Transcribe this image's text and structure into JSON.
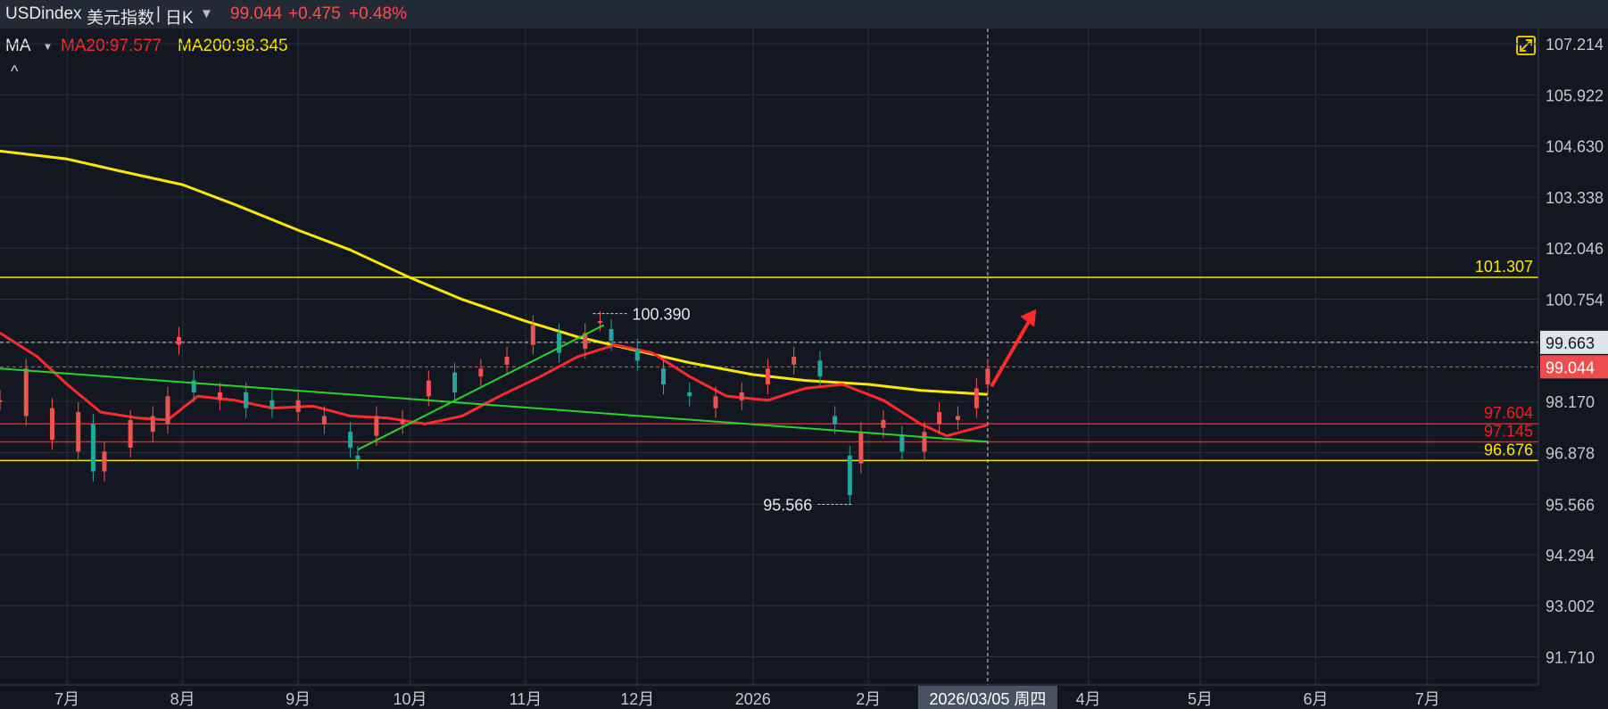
{
  "header": {
    "symbol": "USDindex",
    "name": "美元指数",
    "separator": "|",
    "period": "日K",
    "period_dropdown_icon": "triangle-down-icon",
    "price": "99.044",
    "change": "+0.475",
    "change_pct": "+0.48%"
  },
  "indicator": {
    "name": "MA",
    "dropdown_icon": "triangle-down-icon",
    "ma20_label": "MA20:97.577",
    "ma200_label": "MA200:98.345",
    "ma20_color": "#ff2a2a",
    "ma200_color": "#ffe600",
    "collapse_icon": "chevron-up-icon",
    "expand_icon": "fullscreen-icon"
  },
  "chart_data": {
    "type": "candlestick",
    "ylim": [
      91.0,
      107.6
    ],
    "y_ticks": [
      "107.214",
      "105.922",
      "104.630",
      "103.338",
      "102.046",
      "100.754",
      "99.663",
      "98.170",
      "96.878",
      "95.566",
      "94.294",
      "93.002",
      "91.710"
    ],
    "x_ticks": [
      "7月",
      "8月",
      "9月",
      "10月",
      "11月",
      "12月",
      "2026",
      "2月",
      "4月",
      "5月",
      "6月",
      "7月"
    ],
    "x_tick_dates": [
      "2025-07-01",
      "2025-08-01",
      "2025-09-01",
      "2025-10-01",
      "2025-11-01",
      "2025-12-01",
      "2026-01-01",
      "2026-02-01",
      "2026-04-01",
      "2026-05-01",
      "2026-06-01",
      "2026-07-01"
    ],
    "crosshair": {
      "date": "2026-03-05",
      "label": "2026/03/05 周四",
      "price": 99.663,
      "price_label": "99.663"
    },
    "last_price": {
      "value": 99.044,
      "label": "99.044",
      "color": "#ef4d4d"
    },
    "horizontal_levels": [
      {
        "value": 101.307,
        "label": "101.307",
        "color": "#ffe600"
      },
      {
        "value": 97.604,
        "label": "97.604",
        "color": "#ff1a1a"
      },
      {
        "value": 97.145,
        "label": "97.145",
        "color": "#ff1a1a"
      },
      {
        "value": 96.676,
        "label": "96.676",
        "color": "#ffe600"
      }
    ],
    "annotations": [
      {
        "date": "2025-11-21",
        "value": 100.39,
        "label": "100.390"
      },
      {
        "date": "2026-01-27",
        "value": 95.566,
        "label": "95.566"
      }
    ],
    "ma200": {
      "name": "MA200",
      "color": "#ffe600",
      "points": [
        [
          "2025-06-13",
          104.5
        ],
        [
          "2025-07-01",
          104.3
        ],
        [
          "2025-07-15",
          104.0
        ],
        [
          "2025-08-01",
          103.65
        ],
        [
          "2025-08-15",
          103.15
        ],
        [
          "2025-09-01",
          102.5
        ],
        [
          "2025-09-15",
          102.0
        ],
        [
          "2025-10-01",
          101.3
        ],
        [
          "2025-10-15",
          100.75
        ],
        [
          "2025-11-01",
          100.2
        ],
        [
          "2025-11-15",
          99.8
        ],
        [
          "2025-12-01",
          99.45
        ],
        [
          "2025-12-15",
          99.15
        ],
        [
          "2026-01-01",
          98.85
        ],
        [
          "2026-01-15",
          98.7
        ],
        [
          "2026-02-01",
          98.6
        ],
        [
          "2026-02-15",
          98.45
        ],
        [
          "2026-03-05",
          98.345
        ]
      ]
    },
    "ma20": {
      "name": "MA20",
      "color": "#ff2a2a",
      "points": [
        [
          "2025-06-13",
          99.9
        ],
        [
          "2025-06-23",
          99.3
        ],
        [
          "2025-07-01",
          98.6
        ],
        [
          "2025-07-10",
          97.9
        ],
        [
          "2025-07-20",
          97.75
        ],
        [
          "2025-07-28",
          97.7
        ],
        [
          "2025-08-05",
          98.3
        ],
        [
          "2025-08-15",
          98.2
        ],
        [
          "2025-08-25",
          98.0
        ],
        [
          "2025-09-05",
          98.05
        ],
        [
          "2025-09-15",
          97.8
        ],
        [
          "2025-09-25",
          97.75
        ],
        [
          "2025-10-05",
          97.6
        ],
        [
          "2025-10-15",
          97.8
        ],
        [
          "2025-10-25",
          98.3
        ],
        [
          "2025-11-05",
          98.8
        ],
        [
          "2025-11-15",
          99.3
        ],
        [
          "2025-11-25",
          99.6
        ],
        [
          "2025-12-05",
          99.4
        ],
        [
          "2025-12-15",
          98.8
        ],
        [
          "2025-12-25",
          98.3
        ],
        [
          "2026-01-05",
          98.2
        ],
        [
          "2026-01-15",
          98.5
        ],
        [
          "2026-01-25",
          98.6
        ],
        [
          "2026-02-05",
          98.2
        ],
        [
          "2026-02-15",
          97.6
        ],
        [
          "2026-02-22",
          97.3
        ],
        [
          "2026-03-05",
          97.577
        ]
      ]
    },
    "trendlines": [
      {
        "color": "#28d428",
        "from": [
          "2025-06-13",
          99.0
        ],
        "to": [
          "2026-03-05",
          97.15
        ]
      },
      {
        "color": "#28d428",
        "from": [
          "2025-09-17",
          96.95
        ],
        "to": [
          "2025-11-22",
          100.1
        ]
      }
    ],
    "arrow": {
      "color": "#ff2a2a",
      "from": [
        "2026-03-06",
        98.55
      ],
      "to": [
        "2026-03-18",
        100.5
      ]
    },
    "candles": [
      [
        "2025-06-13",
        98.2,
        98.2
      ],
      [
        "2025-06-20",
        97.8,
        99.0
      ],
      [
        "2025-06-27",
        97.2,
        98.0
      ],
      [
        "2025-07-04",
        96.9,
        97.9
      ],
      [
        "2025-07-08",
        97.6,
        96.4
      ],
      [
        "2025-07-11",
        96.4,
        96.9
      ],
      [
        "2025-07-18",
        97.0,
        97.7
      ],
      [
        "2025-07-24",
        97.4,
        97.8
      ],
      [
        "2025-07-28",
        97.6,
        98.3
      ],
      [
        "2025-07-31",
        99.6,
        99.8
      ],
      [
        "2025-08-04",
        98.7,
        98.4
      ],
      [
        "2025-08-11",
        98.2,
        98.4
      ],
      [
        "2025-08-18",
        98.4,
        98.0
      ],
      [
        "2025-08-25",
        98.2,
        98.0
      ],
      [
        "2025-09-01",
        97.9,
        98.2
      ],
      [
        "2025-09-08",
        97.6,
        97.8
      ],
      [
        "2025-09-15",
        97.4,
        97.0
      ],
      [
        "2025-09-17",
        96.8,
        96.7
      ],
      [
        "2025-09-22",
        97.3,
        97.8
      ],
      [
        "2025-09-29",
        97.6,
        97.7
      ],
      [
        "2025-10-06",
        98.3,
        98.7
      ],
      [
        "2025-10-13",
        98.9,
        98.4
      ],
      [
        "2025-10-20",
        98.8,
        99.0
      ],
      [
        "2025-10-27",
        99.1,
        99.3
      ],
      [
        "2025-11-03",
        99.6,
        100.1
      ],
      [
        "2025-11-10",
        99.9,
        99.4
      ],
      [
        "2025-11-17",
        99.5,
        99.9
      ],
      [
        "2025-11-21",
        100.2,
        100.2
      ],
      [
        "2025-11-24",
        100.0,
        99.7
      ],
      [
        "2025-12-01",
        99.5,
        99.2
      ],
      [
        "2025-12-08",
        99.0,
        98.6
      ],
      [
        "2025-12-15",
        98.4,
        98.3
      ],
      [
        "2025-12-22",
        98.0,
        98.3
      ],
      [
        "2025-12-29",
        98.2,
        98.4
      ],
      [
        "2026-01-05",
        98.6,
        99.0
      ],
      [
        "2026-01-12",
        99.1,
        99.3
      ],
      [
        "2026-01-19",
        99.2,
        98.8
      ],
      [
        "2026-01-23",
        97.8,
        97.6
      ],
      [
        "2026-01-27",
        96.8,
        95.8
      ],
      [
        "2026-01-30",
        96.6,
        97.4
      ],
      [
        "2026-02-05",
        97.5,
        97.7
      ],
      [
        "2026-02-10",
        97.3,
        96.9
      ],
      [
        "2026-02-16",
        96.9,
        97.4
      ],
      [
        "2026-02-20",
        97.6,
        97.9
      ],
      [
        "2026-02-25",
        97.7,
        97.8
      ],
      [
        "2026-03-02",
        98.0,
        98.5
      ],
      [
        "2026-03-05",
        98.6,
        99.0
      ]
    ]
  }
}
